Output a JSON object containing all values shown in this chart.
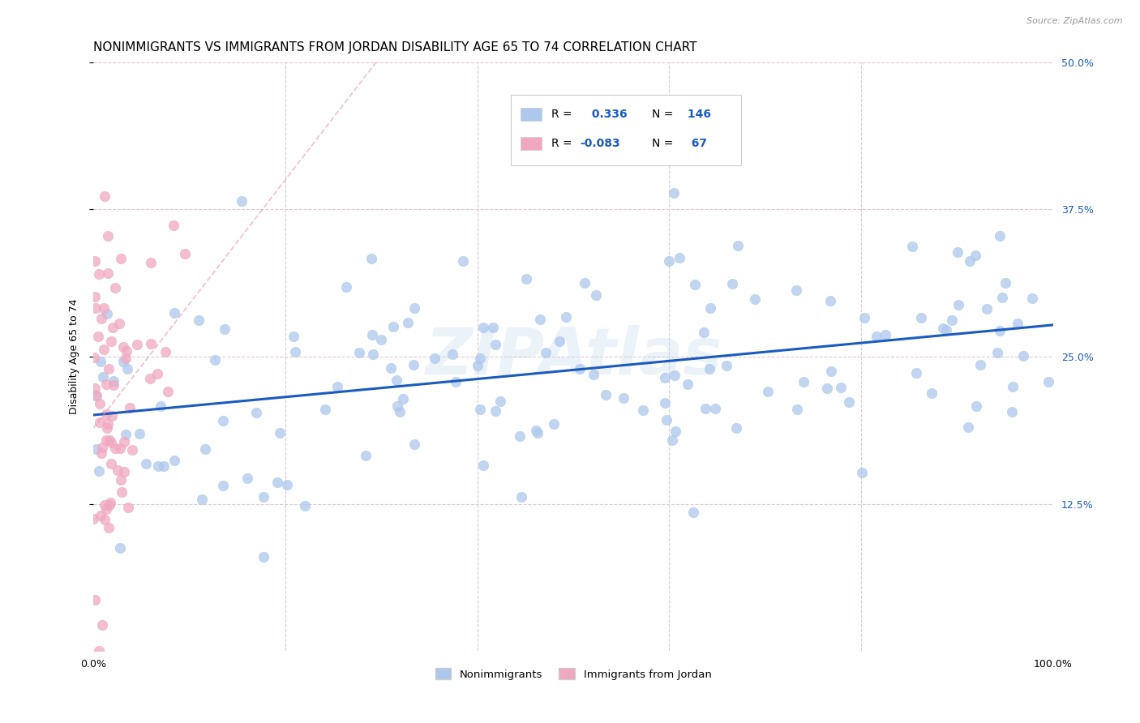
{
  "title": "NONIMMIGRANTS VS IMMIGRANTS FROM JORDAN DISABILITY AGE 65 TO 74 CORRELATION CHART",
  "source": "Source: ZipAtlas.com",
  "ylabel_label": "Disability Age 65 to 74",
  "r_nonimm": 0.336,
  "n_nonimm": 146,
  "r_immig": -0.083,
  "n_immig": 67,
  "nonimm_color": "#adc8ed",
  "immig_color": "#f0a8c0",
  "nonimm_line_color": "#1a5bbf",
  "immig_line_color": "#e890b0",
  "legend_r_color": "#1a5bbf",
  "watermark": "ZIPAtlas",
  "xlim": [
    0.0,
    1.0
  ],
  "ylim": [
    0.0,
    0.5
  ],
  "background_color": "#ffffff",
  "grid_color": "#ddc8d4",
  "title_fontsize": 11,
  "axis_label_fontsize": 9,
  "tick_fontsize": 9,
  "seed_nonimm": 12,
  "seed_immig": 7
}
